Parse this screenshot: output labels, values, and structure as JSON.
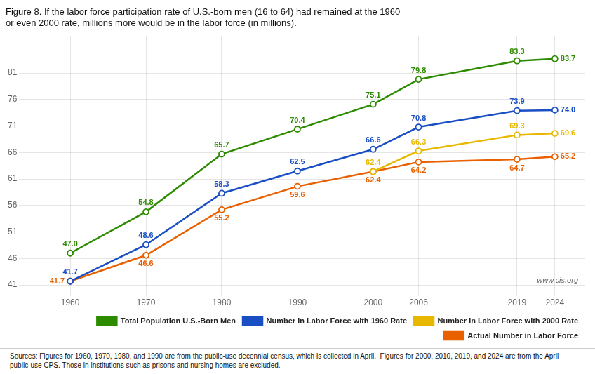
{
  "chart_data": {
    "type": "line",
    "title": "Figure 8. If the labor force participation rate of U.S.-born men (16 to 64) had remained at the 1960\nor even 2000 rate, millions more would be in the labor force (in millions).",
    "x": [
      1960,
      1970,
      1980,
      1990,
      2000,
      2006,
      2019,
      2024
    ],
    "series": [
      {
        "name": "Total Population U.S.-Born Men",
        "color": "#2d8b00",
        "values": [
          47.0,
          54.8,
          65.7,
          70.4,
          75.1,
          79.8,
          83.3,
          83.7
        ],
        "value_labels": [
          "47.0",
          "54.8",
          "65.7",
          "70.4",
          "75.1",
          "79.8",
          "83.3",
          "83.7"
        ]
      },
      {
        "name": "Number in Labor Force with 1960 Rate",
        "color": "#1a4fc4",
        "values": [
          41.7,
          48.6,
          58.3,
          62.5,
          66.6,
          70.8,
          73.9,
          74.0
        ],
        "value_labels": [
          "41.7",
          "48.6",
          "58.3",
          "62.5",
          "66.6",
          "70.8",
          "73.9",
          "74.0"
        ]
      },
      {
        "name": "Number in Labor Force with 2000 Rate",
        "color": "#e8b800",
        "values": [
          null,
          null,
          null,
          null,
          62.4,
          66.3,
          69.3,
          69.6
        ],
        "value_labels": [
          null,
          null,
          null,
          null,
          "62.4",
          "66.3",
          "69.3",
          "69.6"
        ]
      },
      {
        "name": "Actual Number in Labor Force",
        "color": "#e86000",
        "values": [
          41.7,
          46.6,
          55.2,
          59.6,
          62.4,
          64.2,
          64.7,
          65.2
        ],
        "value_labels": [
          "41.7",
          "46.6",
          "55.2",
          "59.6",
          "62.4",
          "64.2",
          "64.7",
          "65.2"
        ]
      }
    ],
    "xlim": [
      1954,
      2028
    ],
    "xticks": [
      1960,
      1970,
      1980,
      1990,
      2000,
      2006,
      2019,
      2024
    ],
    "ylim": [
      40.0,
      88.0
    ],
    "yticks": [
      41,
      46,
      51,
      56,
      61,
      66,
      71,
      76,
      81
    ],
    "grid": true,
    "legend": "lower right",
    "data_labels": true,
    "marker": "circle",
    "annotations": [
      "www.cis.org",
      "Sources: Figures for 1960, 1970, 1980, and 1990 are from the public-use decennial census, which is collected in April.  Figures for 2000, 2010, 2019, and 2024 are from the April\npublic-use CPS. Those in institutions such as prisons and nursing homes are excluded."
    ]
  }
}
